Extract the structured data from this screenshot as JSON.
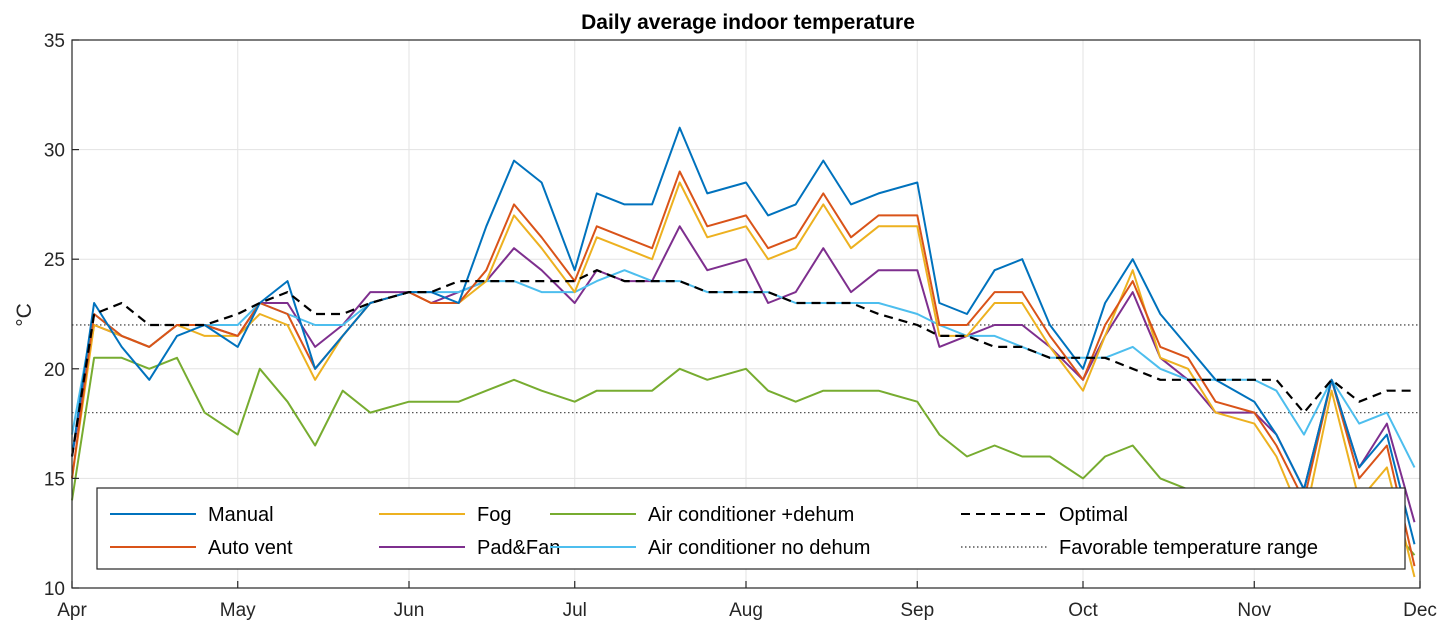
{
  "chart_data": {
    "type": "line",
    "title": "Daily average indoor temperature",
    "ylabel": "°C",
    "xlabel": "",
    "ylim": [
      10,
      35
    ],
    "yticks": [
      10,
      15,
      20,
      25,
      30,
      35
    ],
    "xticks": [
      "Apr",
      "May",
      "Jun",
      "Jul",
      "Aug",
      "Sep",
      "Oct",
      "Nov",
      "Dec"
    ],
    "grid": true,
    "legend_position": "bottom-inside",
    "x_dates": [
      "04-01",
      "04-05",
      "04-10",
      "04-15",
      "04-20",
      "04-25",
      "05-01",
      "05-05",
      "05-10",
      "05-15",
      "05-20",
      "05-25",
      "06-01",
      "06-05",
      "06-10",
      "06-15",
      "06-20",
      "06-25",
      "07-01",
      "07-05",
      "07-10",
      "07-15",
      "07-20",
      "07-25",
      "08-01",
      "08-05",
      "08-10",
      "08-15",
      "08-20",
      "08-25",
      "09-01",
      "09-05",
      "09-10",
      "09-15",
      "09-20",
      "09-25",
      "10-01",
      "10-05",
      "10-10",
      "10-15",
      "10-20",
      "10-25",
      "11-01",
      "11-05",
      "11-10",
      "11-15",
      "11-20",
      "11-25",
      "11-30"
    ],
    "series": [
      {
        "name": "Manual",
        "color": "#0072BD",
        "style": "solid",
        "values": [
          16,
          23,
          21,
          19.5,
          21.5,
          22,
          21,
          23,
          24,
          20,
          21.5,
          23,
          23.5,
          23.5,
          23,
          26.5,
          29.5,
          28.5,
          24.5,
          28,
          27.5,
          27.5,
          31,
          28,
          28.5,
          27,
          27.5,
          29.5,
          27.5,
          28,
          28.5,
          23,
          22.5,
          24.5,
          25,
          22,
          20,
          23,
          25,
          22.5,
          21,
          19.5,
          18.5,
          17,
          14.5,
          19.5,
          15.5,
          17,
          12
        ]
      },
      {
        "name": "Auto vent",
        "color": "#D95319",
        "style": "solid",
        "values": [
          15,
          22.5,
          21.5,
          21,
          22,
          22,
          21.5,
          23,
          22.5,
          20,
          21.5,
          23,
          23.5,
          23,
          23,
          24.5,
          27.5,
          26,
          24,
          26.5,
          26,
          25.5,
          29,
          26.5,
          27,
          25.5,
          26,
          28,
          26,
          27,
          27,
          22,
          22,
          23.5,
          23.5,
          21.5,
          19.5,
          22,
          24,
          21,
          20.5,
          18.5,
          18,
          16.5,
          14,
          19.5,
          15,
          16.5,
          11
        ]
      },
      {
        "name": "Fog",
        "color": "#EDB120",
        "style": "solid",
        "values": [
          15,
          22,
          21.5,
          21,
          22,
          21.5,
          21.5,
          22.5,
          22,
          19.5,
          21.5,
          23,
          23.5,
          23,
          23,
          24,
          27,
          25.5,
          23.5,
          26,
          25.5,
          25,
          28.5,
          26,
          26.5,
          25,
          25.5,
          27.5,
          25.5,
          26.5,
          26.5,
          21.5,
          21.5,
          23,
          23,
          21,
          19,
          21.5,
          24.5,
          20.5,
          20,
          18,
          17.5,
          16,
          13,
          19,
          14,
          15.5,
          10.5
        ]
      },
      {
        "name": "Pad&Fan",
        "color": "#7E2F8E",
        "style": "solid",
        "values": [
          16,
          22,
          21.5,
          21,
          22,
          22,
          21.5,
          23,
          23,
          21,
          22,
          23.5,
          23.5,
          23,
          23.5,
          24,
          25.5,
          24.5,
          23,
          24.5,
          24,
          24,
          26.5,
          24.5,
          25,
          23,
          23.5,
          25.5,
          23.5,
          24.5,
          24.5,
          21,
          21.5,
          22,
          22,
          21,
          19.5,
          21.5,
          23.5,
          20.5,
          19.5,
          18,
          18,
          17,
          14.5,
          19.5,
          15.5,
          17.5,
          13
        ]
      },
      {
        "name": "Air conditioner +dehum",
        "color": "#77AC30",
        "style": "solid",
        "values": [
          14,
          20.5,
          20.5,
          20,
          20.5,
          18,
          17,
          20,
          18.5,
          16.5,
          19,
          18,
          18.5,
          18.5,
          18.5,
          19,
          19.5,
          19,
          18.5,
          19,
          19,
          19,
          20,
          19.5,
          20,
          19,
          18.5,
          19,
          19,
          19,
          18.5,
          17,
          16,
          16.5,
          16,
          16,
          15,
          16,
          16.5,
          15,
          14.5,
          14,
          14,
          13.5,
          13,
          13,
          13,
          13,
          11.5
        ]
      },
      {
        "name": "Air conditioner no dehum",
        "color": "#4DBEEE",
        "style": "solid",
        "values": [
          17,
          22.5,
          21.5,
          21,
          22,
          22,
          22,
          23,
          22.5,
          22,
          22,
          23,
          23.5,
          23.5,
          23.5,
          24,
          24,
          23.5,
          23.5,
          24,
          24.5,
          24,
          24,
          23.5,
          23.5,
          23.5,
          23,
          23,
          23,
          23,
          22.5,
          22,
          21.5,
          21.5,
          21,
          20.5,
          20.5,
          20.5,
          21,
          20,
          19.5,
          19.5,
          19.5,
          19,
          17,
          19.5,
          17.5,
          18,
          15.5
        ]
      },
      {
        "name": "Optimal",
        "color": "#000000",
        "style": "dashed",
        "values": [
          16,
          22.5,
          23,
          22,
          22,
          22,
          22.5,
          23,
          23.5,
          22.5,
          22.5,
          23,
          23.5,
          23.5,
          24,
          24,
          24,
          24,
          24,
          24.5,
          24,
          24,
          24,
          23.5,
          23.5,
          23.5,
          23,
          23,
          23,
          22.5,
          22,
          21.5,
          21.5,
          21,
          21,
          20.5,
          20.5,
          20.5,
          20,
          19.5,
          19.5,
          19.5,
          19.5,
          19.5,
          18,
          19.5,
          18.5,
          19,
          19
        ]
      }
    ],
    "reference_lines": [
      {
        "name": "Favorable temperature range",
        "values": [
          18,
          22
        ],
        "style": "dotted",
        "color": "#555555"
      }
    ]
  }
}
